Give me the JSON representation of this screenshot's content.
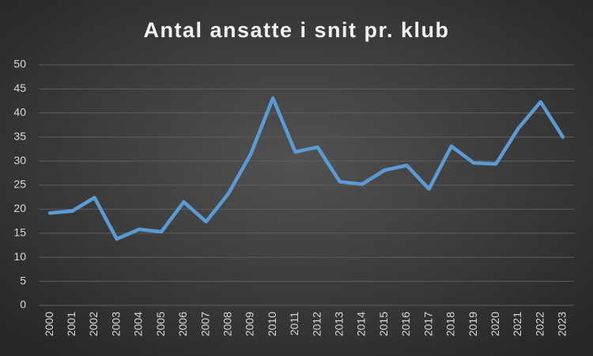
{
  "chart_data": {
    "type": "line",
    "title": "Antal ansatte i snit pr. klub",
    "categories": [
      "2000",
      "2001",
      "2002",
      "2003",
      "2004",
      "2005",
      "2006",
      "2007",
      "2008",
      "2009",
      "2010",
      "2011",
      "2012",
      "2013",
      "2014",
      "2015",
      "2016",
      "2017",
      "2018",
      "2019",
      "2020",
      "2021",
      "2022",
      "2023"
    ],
    "values": [
      19.2,
      19.6,
      22.4,
      13.8,
      15.8,
      15.3,
      21.5,
      17.4,
      23.2,
      31.4,
      43.1,
      31.9,
      32.9,
      25.7,
      25.2,
      28.1,
      29.1,
      24.2,
      33.1,
      29.6,
      29.4,
      36.8,
      42.3,
      35.0
    ],
    "color": "#5b9bd5",
    "ylim": [
      0,
      50
    ],
    "yticks": [
      0,
      5,
      10,
      15,
      20,
      25,
      30,
      35,
      40,
      45,
      50
    ],
    "grid": true
  }
}
